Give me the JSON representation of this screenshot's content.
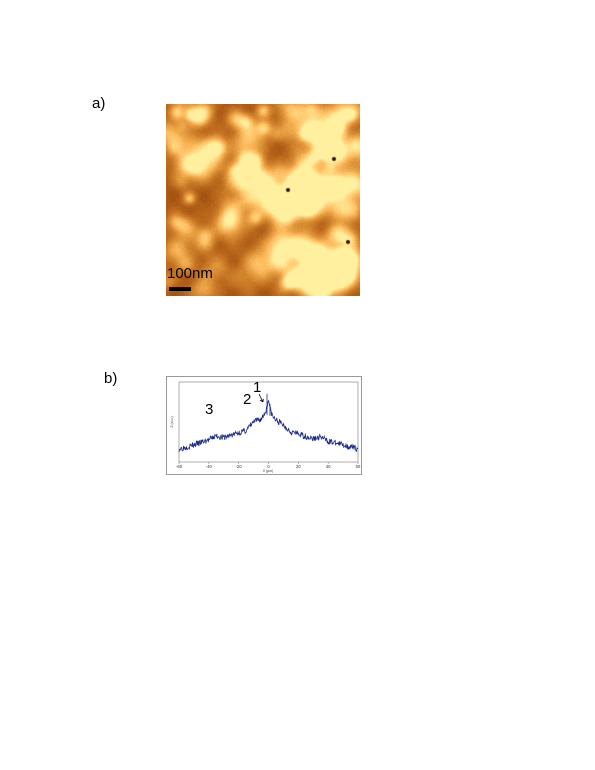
{
  "panel_a": {
    "label": "a)",
    "scale_bar_label": "100nm"
  },
  "panel_b": {
    "label": "b)",
    "peak_labels": [
      "1",
      "2",
      "3"
    ]
  },
  "chart_data": {
    "type": "line",
    "title": "",
    "xlabel": "X (µm)",
    "ylabel": "Z (a.u.)",
    "xlim": [
      -60,
      60
    ],
    "x_ticks": [
      "-60",
      "-40",
      "-20",
      "0",
      "20",
      "40",
      "60"
    ],
    "grid": false,
    "series": [
      {
        "color": "#1a2a8c",
        "x": [
          -60,
          -50,
          -40,
          -35,
          -30,
          -20,
          -15,
          -10,
          -5,
          -3,
          -1,
          0,
          1,
          3,
          5,
          10,
          15,
          20,
          30,
          35,
          40,
          50,
          60
        ],
        "y": [
          0.05,
          0.12,
          0.2,
          0.27,
          0.24,
          0.32,
          0.36,
          0.5,
          0.55,
          0.62,
          0.74,
          0.9,
          0.72,
          0.58,
          0.53,
          0.45,
          0.34,
          0.3,
          0.22,
          0.25,
          0.18,
          0.12,
          0.05
        ]
      }
    ]
  }
}
